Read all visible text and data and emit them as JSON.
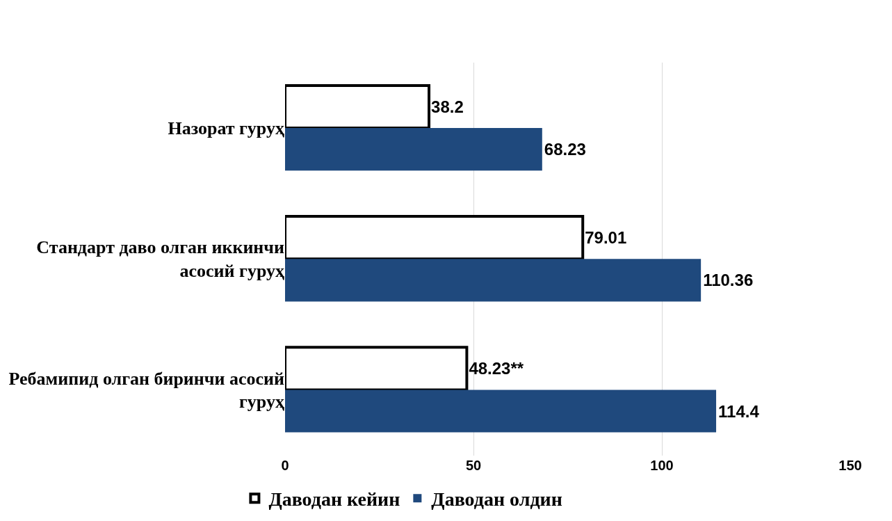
{
  "chart_data": {
    "type": "bar",
    "orientation": "horizontal",
    "categories": [
      "Назорат гуруҳ",
      "Стандарт даво олган иккинчи асосий гуруҳ",
      "Ребамипид олган биринчи асосий гуруҳ"
    ],
    "series": [
      {
        "name": "Даводан кейин",
        "color": "#ffffff",
        "values": [
          38.2,
          79.01,
          48.23
        ],
        "value_labels": [
          "38.2",
          "79.01",
          "48.23**"
        ]
      },
      {
        "name": "Даводан олдин",
        "color": "#1f497d",
        "values": [
          68.23,
          110.36,
          114.4
        ],
        "value_labels": [
          "68.23",
          "110.36",
          "114.4"
        ]
      }
    ],
    "xlim": [
      0,
      150
    ],
    "xticks": [
      0,
      50,
      100,
      150
    ],
    "grid": "x",
    "legend": "bottom left"
  }
}
